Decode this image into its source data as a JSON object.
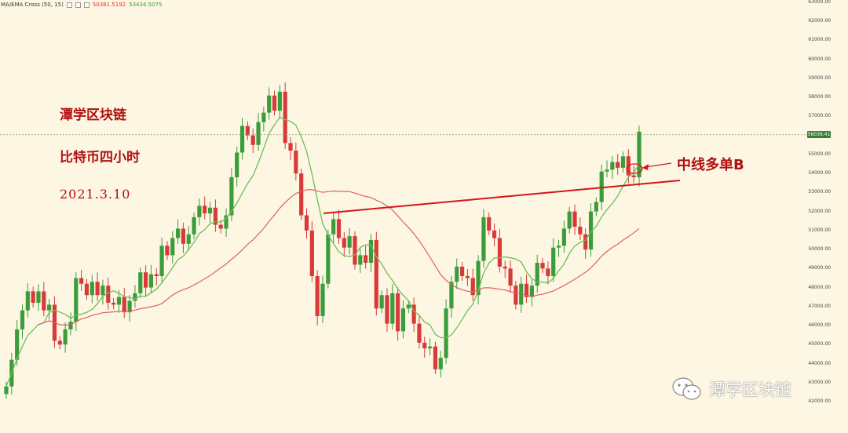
{
  "indicator": {
    "name": "MA/EMA Cross (50, 15)",
    "value_ma": "50381.5192",
    "value_ema": "53434.5075"
  },
  "annotations": {
    "title": "潭学区块链",
    "subtitle": "比特币四小时",
    "date": "2021.3.10",
    "order_label": "中线多单B"
  },
  "watermark": {
    "text": "潭学区块链",
    "icon": "wechat-icon"
  },
  "colors": {
    "background": "#fdf6e3",
    "up": "#3a9d3a",
    "down": "#d83a3a",
    "ma_fast": "#6cbf5a",
    "ma_slow": "#e06060",
    "trendline": "#d01818",
    "annotation": "#b01010"
  },
  "chart_data": {
    "type": "candlestick",
    "ylim": [
      42000,
      63000
    ],
    "y_ticks": [
      "42000.00",
      "43000.00",
      "44000.00",
      "45000.00",
      "46000.00",
      "47000.00",
      "48000.00",
      "49000.00",
      "50000.00",
      "51000.00",
      "52000.00",
      "53000.00",
      "54000.00",
      "55000.00",
      "56000.00",
      "57000.00",
      "58000.00",
      "59000.00",
      "60000.00",
      "61000.00",
      "62000.00",
      "63000.00"
    ],
    "current_price": "56036.41",
    "current_price_value": 56036.41,
    "closes": [
      42800,
      44200,
      45800,
      46800,
      47800,
      47200,
      47800,
      46800,
      47100,
      45200,
      45000,
      45800,
      46200,
      48500,
      48200,
      47600,
      48300,
      47600,
      48100,
      47200,
      47100,
      47500,
      46700,
      47300,
      47700,
      48800,
      48000,
      48700,
      48600,
      50200,
      49700,
      50600,
      51100,
      50300,
      50800,
      51700,
      52300,
      51900,
      52200,
      51300,
      51100,
      51800,
      53800,
      55100,
      56500,
      56000,
      55500,
      56700,
      57200,
      58100,
      57300,
      58300,
      55600,
      55200,
      54000,
      51800,
      51000,
      48600,
      46500,
      48200,
      50800,
      51600,
      50600,
      50100,
      50700,
      49200,
      49700,
      49300,
      50500,
      46900,
      47600,
      46100,
      47700,
      45700,
      46900,
      47100,
      46100,
      45100,
      44800,
      44900,
      43700,
      44300,
      46900,
      48300,
      49100,
      48600,
      48500,
      47600,
      49400,
      51700,
      51000,
      50600,
      49100,
      49000,
      48100,
      47100,
      48200,
      47500,
      48100,
      49300,
      49000,
      48600,
      50100,
      50200,
      51100,
      52000,
      51200,
      50800,
      50000,
      52000,
      52500,
      54100,
      54200,
      54600,
      54300,
      54900,
      53900,
      53800,
      56200
    ]
  }
}
